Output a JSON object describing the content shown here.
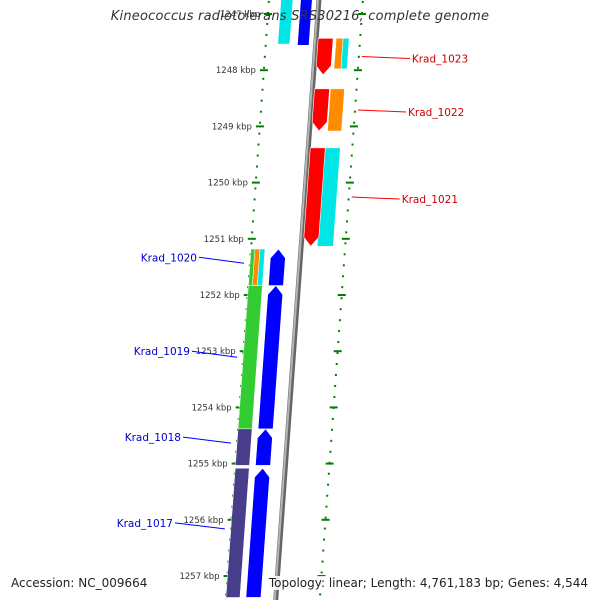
{
  "title": "Kineococcus radiotolerans SRS30216, complete genome",
  "footer": {
    "accession": "Accession: NC_009664",
    "summary": "Topology: linear; Length: 4,761,183 bp; Genes: 4,544"
  },
  "axis": {
    "unit": "kbp",
    "ticks": [
      1247,
      1248,
      1249,
      1250,
      1251,
      1252,
      1253,
      1254,
      1255,
      1256,
      1257
    ]
  },
  "genes": {
    "reverse": [
      {
        "label": "Krad_1023",
        "start_kbp": 1247.45,
        "end_kbp": 1248.1
      },
      {
        "label": "Krad_1022",
        "start_kbp": 1248.35,
        "end_kbp": 1249.1
      },
      {
        "label": "Krad_1021",
        "start_kbp": 1249.4,
        "end_kbp": 1251.15
      }
    ],
    "forward": [
      {
        "label": "Krad_1020",
        "start_kbp": 1251.2,
        "end_kbp": 1251.85
      },
      {
        "label": "Krad_1019",
        "start_kbp": 1251.85,
        "end_kbp": 1254.4
      },
      {
        "label": "Krad_1018",
        "start_kbp": 1254.4,
        "end_kbp": 1255.05
      },
      {
        "label": "Krad_1017",
        "start_kbp": 1255.1,
        "end_kbp": 1257.4
      }
    ]
  },
  "colors": {
    "reverse_gene": "#ff0000",
    "reverse_label": "#cc0000",
    "forward_gene": "#0000ff",
    "forward_label": "#0000cc",
    "orange": "#ff8c00",
    "cyan": "#00e5e5",
    "green": "#33cc33",
    "purple": "#483d8b",
    "axis": "#888888",
    "tick": "#008000"
  }
}
